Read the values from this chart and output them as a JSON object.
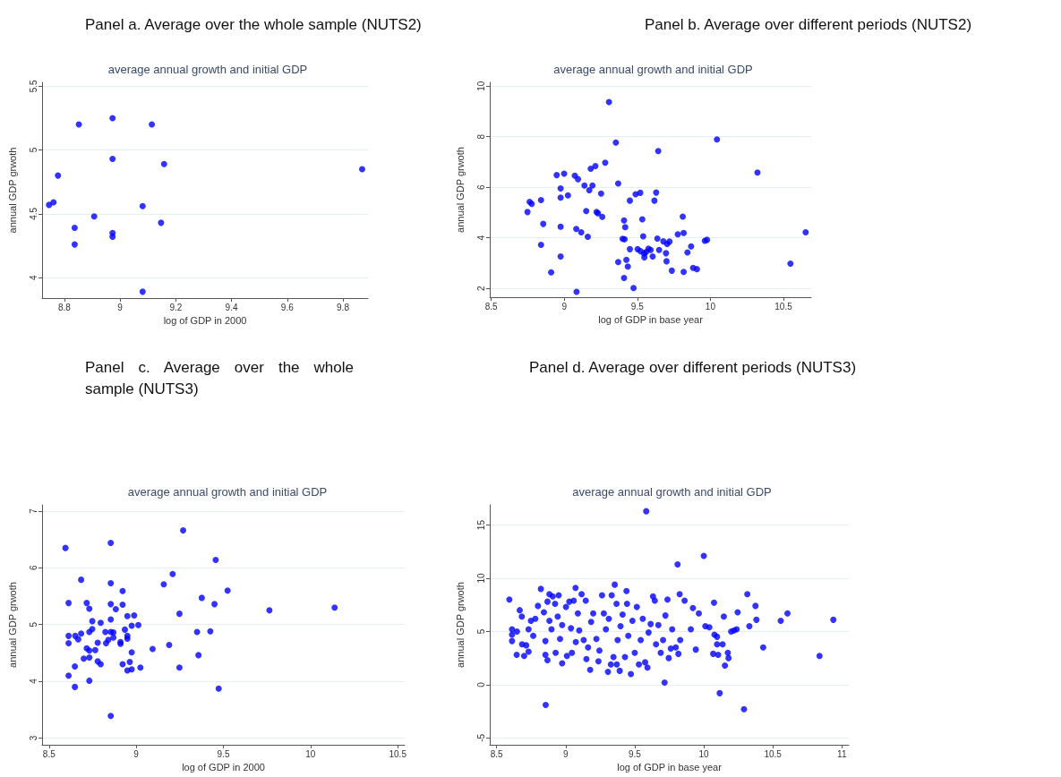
{
  "chart_data": [
    {
      "type": "scatter",
      "title": "Panel a. Average over the whole sample (NUTS2)",
      "subtitle": "average annual growth and initial GDP",
      "xlabel": "log of GDP in 2000",
      "ylabel": "annual GDP grwoth",
      "color": "#0000ff",
      "marker": "circle",
      "grid": "y",
      "xlim": [
        8.72,
        9.89
      ],
      "ylim": [
        3.84,
        5.53
      ],
      "xticks": [
        8.8,
        9,
        9.2,
        9.4,
        9.6,
        9.8
      ],
      "yticks": [
        4,
        4.5,
        5,
        5.5
      ],
      "x": [
        8.745,
        8.761,
        8.777,
        8.852,
        8.837,
        8.837,
        8.907,
        8.973,
        8.973,
        8.973,
        8.973,
        9.081,
        9.081,
        9.114,
        9.158,
        9.147,
        9.869
      ],
      "values": [
        4.57,
        4.59,
        4.8,
        5.2,
        4.39,
        4.26,
        4.48,
        5.25,
        4.93,
        4.35,
        4.32,
        4.56,
        3.89,
        5.2,
        4.89,
        4.43,
        4.85
      ]
    },
    {
      "type": "scatter",
      "title": "Panel b. Average over different periods (NUTS2)",
      "subtitle": "average annual growth and initial GDP",
      "xlabel": "log of GDP in base year",
      "ylabel": "annual GDP grwoth",
      "color": "#0000ff",
      "marker": "circle",
      "grid": "y",
      "xlim": [
        8.49,
        10.69
      ],
      "ylim": [
        1.65,
        10.15
      ],
      "xticks": [
        8.5,
        9,
        9.5,
        10,
        10.5
      ],
      "yticks": [
        2,
        4,
        6,
        8,
        10
      ],
      "x": [
        8.748,
        8.763,
        8.777,
        8.841,
        8.856,
        8.841,
        8.91,
        8.948,
        8.999,
        8.975,
        8.975,
        9.025,
        8.975,
        8.975,
        9.072,
        9.094,
        9.084,
        9.082,
        9.116,
        9.161,
        9.138,
        9.171,
        9.181,
        9.213,
        9.193,
        9.15,
        9.221,
        9.231,
        9.252,
        9.26,
        9.28,
        9.306,
        9.353,
        9.369,
        9.369,
        9.409,
        9.417,
        9.399,
        9.413,
        9.409,
        9.425,
        9.435,
        9.449,
        9.449,
        9.474,
        9.488,
        9.52,
        9.502,
        9.522,
        9.534,
        9.54,
        9.546,
        9.548,
        9.56,
        9.576,
        9.591,
        9.605,
        9.617,
        9.629,
        9.637,
        9.643,
        9.649,
        9.678,
        9.696,
        9.7,
        9.704,
        9.72,
        9.736,
        9.777,
        9.811,
        9.817,
        9.817,
        9.843,
        9.868,
        9.882,
        9.908,
        9.962,
        9.977,
        10.045,
        10.322,
        10.548,
        10.652
      ],
      "values": [
        5.02,
        5.42,
        5.34,
        5.49,
        4.55,
        3.72,
        2.63,
        6.48,
        6.54,
        5.95,
        5.59,
        5.68,
        4.44,
        3.26,
        6.46,
        6.32,
        1.86,
        4.35,
        4.22,
        4.04,
        6.07,
        5.88,
        6.73,
        6.84,
        6.07,
        5.06,
        5.02,
        4.97,
        5.75,
        4.83,
        6.97,
        9.37,
        7.77,
        6.15,
        3.04,
        4.69,
        4.42,
        3.96,
        3.94,
        2.41,
        3.13,
        2.86,
        3.55,
        5.47,
        2.01,
        5.72,
        5.78,
        3.55,
        3.47,
        4.73,
        4.06,
        3.38,
        3.23,
        3.44,
        3.57,
        3.52,
        3.26,
        5.47,
        5.79,
        3.97,
        7.43,
        3.52,
        3.86,
        3.39,
        3.07,
        3.76,
        3.85,
        2.7,
        4.14,
        4.84,
        4.19,
        2.65,
        3.42,
        3.66,
        2.81,
        2.76,
        3.88,
        3.92,
        7.89,
        6.58,
        2.98,
        4.22
      ]
    },
    {
      "type": "scatter",
      "title": "Panel c. Average over the whole sample (NUTS3)",
      "subtitle": "average annual growth and initial GDP",
      "xlabel": "log of GDP in 2000",
      "ylabel": "annual GDP grwoth",
      "color": "#0000ff",
      "marker": "circle",
      "grid": "y",
      "xlim": [
        8.46,
        10.54
      ],
      "ylim": [
        2.88,
        7.11
      ],
      "xticks": [
        8.5,
        9,
        9.5,
        10,
        10.5
      ],
      "yticks": [
        3,
        4,
        5,
        6,
        7
      ],
      "x": [
        8.594,
        8.612,
        8.612,
        8.612,
        8.612,
        8.648,
        8.648,
        8.65,
        8.667,
        8.684,
        8.684,
        8.699,
        8.716,
        8.716,
        8.731,
        8.731,
        8.731,
        8.731,
        8.731,
        8.748,
        8.748,
        8.765,
        8.779,
        8.779,
        8.796,
        8.796,
        8.823,
        8.827,
        8.84,
        8.854,
        8.854,
        8.854,
        8.854,
        8.854,
        8.854,
        8.869,
        8.869,
        8.883,
        8.91,
        8.91,
        8.922,
        8.922,
        8.922,
        8.935,
        8.949,
        8.949,
        8.949,
        8.949,
        8.963,
        8.974,
        8.974,
        8.974,
        8.988,
        9.012,
        9.024,
        9.094,
        9.158,
        9.189,
        9.209,
        9.248,
        9.248,
        9.269,
        9.349,
        9.357,
        9.376,
        9.425,
        9.449,
        9.456,
        9.473,
        9.524,
        9.764,
        10.138
      ],
      "values": [
        6.35,
        5.38,
        4.8,
        4.67,
        4.1,
        4.26,
        3.9,
        4.8,
        4.74,
        5.79,
        4.84,
        4.4,
        5.38,
        4.58,
        5.28,
        4.87,
        4.54,
        4.42,
        4.01,
        5.06,
        4.92,
        4.55,
        4.68,
        4.35,
        4.3,
        5.03,
        4.87,
        4.67,
        4.73,
        6.44,
        5.73,
        5.36,
        5.09,
        4.87,
        3.39,
        4.86,
        4.77,
        5.27,
        4.69,
        4.66,
        5.59,
        5.35,
        4.3,
        4.91,
        5.15,
        4.8,
        4.75,
        4.19,
        4.34,
        4.98,
        4.51,
        4.21,
        5.16,
        4.99,
        4.24,
        4.57,
        5.71,
        4.64,
        5.89,
        5.19,
        4.24,
        6.66,
        4.87,
        4.46,
        5.47,
        4.88,
        5.36,
        6.14,
        3.87,
        5.6,
        5.25,
        5.3
      ]
    },
    {
      "type": "scatter",
      "title": "Panel d. Average over different periods (NUTS3)",
      "subtitle": "average annual growth and initial GDP",
      "xlabel": "log of GDP in base year",
      "ylabel": "annual GDP grwoth",
      "color": "#0000ff",
      "marker": "circle",
      "grid": "y",
      "xlim": [
        8.45,
        11.05
      ],
      "ylim": [
        -5.65,
        16.9
      ],
      "xticks": [
        8.5,
        9,
        9.5,
        10,
        10.5,
        11
      ],
      "yticks": [
        -5,
        0,
        5,
        10,
        15
      ],
      "x": [
        8.592,
        8.611,
        8.611,
        8.611,
        8.645,
        8.647,
        8.667,
        8.682,
        8.684,
        8.699,
        8.714,
        8.731,
        8.731,
        8.748,
        8.765,
        8.78,
        8.799,
        8.82,
        8.842,
        8.853,
        8.853,
        8.855,
        8.868,
        8.868,
        8.882,
        8.882,
        8.897,
        8.906,
        8.923,
        8.927,
        8.942,
        8.949,
        8.959,
        8.974,
        8.974,
        9.002,
        9.009,
        9.026,
        9.038,
        9.045,
        9.058,
        9.071,
        9.073,
        9.088,
        9.098,
        9.115,
        9.13,
        9.145,
        9.15,
        9.162,
        9.177,
        9.184,
        9.199,
        9.222,
        9.237,
        9.244,
        9.263,
        9.276,
        9.291,
        9.306,
        9.312,
        9.327,
        9.333,
        9.346,
        9.355,
        9.368,
        9.37,
        9.376,
        9.391,
        9.397,
        9.412,
        9.429,
        9.44,
        9.444,
        9.453,
        9.472,
        9.483,
        9.5,
        9.515,
        9.53,
        9.543,
        9.558,
        9.575,
        9.583,
        9.592,
        9.6,
        9.615,
        9.632,
        9.645,
        9.654,
        9.671,
        9.688,
        9.705,
        9.716,
        9.722,
        9.737,
        9.746,
        9.761,
        9.771,
        9.797,
        9.81,
        9.816,
        9.825,
        9.829,
        9.861,
        9.906,
        9.921,
        9.942,
        9.964,
        10.0,
        10.011,
        10.04,
        10.074,
        10.077,
        10.096,
        10.068,
        10.104,
        10.096,
        10.136,
        10.115,
        10.145,
        10.153,
        10.174,
        10.179,
        10.198,
        10.219,
        10.238,
        10.245,
        10.291,
        10.315,
        10.33,
        10.374,
        10.381,
        10.43,
        10.557,
        10.606,
        10.838,
        10.938
      ],
      "values": [
        8.0,
        5.2,
        4.7,
        4.1,
        2.8,
        5.0,
        7.0,
        6.4,
        3.8,
        2.7,
        3.7,
        3.1,
        5.2,
        6.0,
        4.6,
        6.2,
        7.4,
        9.0,
        6.8,
        4.1,
        2.8,
        -1.9,
        2.3,
        7.8,
        8.5,
        6.0,
        5.2,
        8.3,
        7.6,
        3.0,
        6.4,
        8.4,
        4.3,
        2.0,
        5.6,
        7.3,
        2.7,
        7.8,
        5.3,
        3.0,
        7.9,
        9.1,
        4.0,
        6.7,
        5.1,
        8.5,
        4.2,
        7.9,
        2.4,
        3.5,
        1.4,
        5.9,
        6.7,
        4.3,
        2.2,
        3.2,
        8.4,
        6.7,
        5.2,
        1.2,
        6.2,
        1.9,
        8.4,
        2.6,
        9.4,
        7.6,
        1.9,
        4.2,
        1.3,
        5.5,
        6.6,
        2.6,
        8.8,
        7.6,
        4.6,
        1.0,
        6.0,
        3.0,
        7.3,
        1.9,
        4.2,
        6.2,
        2.1,
        16.3,
        1.6,
        4.9,
        5.7,
        8.3,
        7.9,
        3.8,
        5.6,
        3.0,
        4.2,
        0.2,
        6.5,
        8.0,
        2.5,
        3.4,
        5.2,
        3.5,
        11.3,
        2.9,
        8.5,
        4.2,
        7.9,
        5.2,
        7.2,
        3.3,
        6.7,
        12.1,
        5.5,
        5.4,
        7.7,
        4.7,
        4.5,
        2.9,
        2.8,
        3.8,
        3.8,
        -0.8,
        6.4,
        1.8,
        3.0,
        2.5,
        5.0,
        5.1,
        5.2,
        6.8,
        -2.3,
        8.5,
        5.5,
        7.4,
        6.1,
        3.5,
        6.0,
        6.7,
        2.7,
        6.1
      ]
    }
  ]
}
